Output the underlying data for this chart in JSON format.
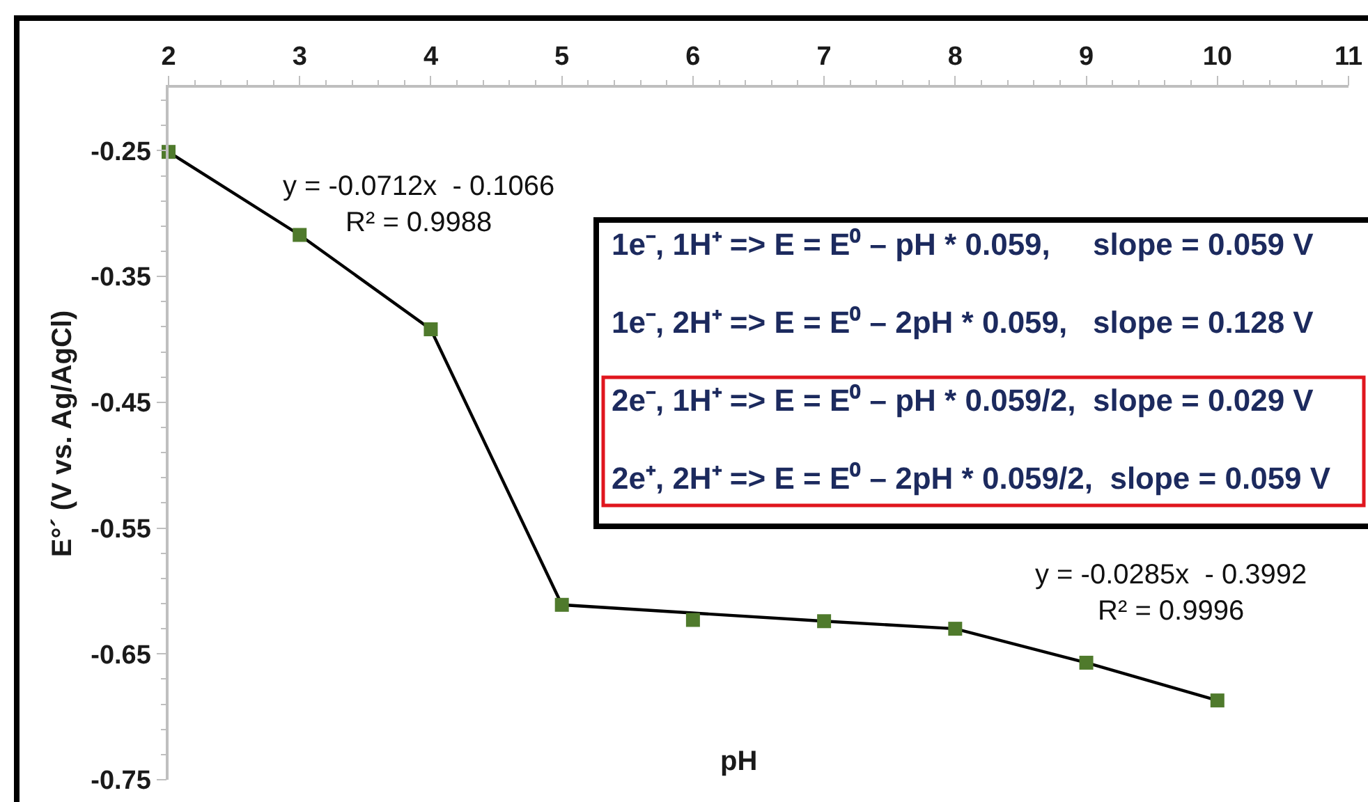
{
  "chart_data": {
    "type": "line",
    "xlabel": "pH",
    "ylabel": "E°´ (V vs. Ag/AgCl)",
    "series": [
      {
        "color": "#000000",
        "x": [
          2,
          3,
          4,
          5,
          7,
          8,
          9,
          10
        ],
        "values": [
          -0.251,
          -0.317,
          -0.392,
          -0.611,
          -0.624,
          -0.63,
          -0.657,
          -0.687
        ]
      },
      {
        "type": "scatter",
        "color": "#4f7a2c",
        "marker": "square",
        "x": [
          2,
          3,
          4,
          5,
          6,
          7,
          8,
          9,
          10
        ],
        "values": [
          -0.251,
          -0.317,
          -0.392,
          -0.611,
          -0.623,
          -0.624,
          -0.63,
          -0.657,
          -0.687
        ]
      }
    ],
    "xlim": [
      2,
      11
    ],
    "xticks": [
      2,
      {
        "value": 2.2,
        "label": null
      },
      {
        "value": 2.4,
        "label": null
      },
      {
        "value": 2.6,
        "label": null
      },
      {
        "value": 2.8,
        "label": null
      },
      3,
      {
        "value": 3.2,
        "label": null
      },
      {
        "value": 3.4,
        "label": null
      },
      {
        "value": 3.6,
        "label": null
      },
      {
        "value": 3.8,
        "label": null
      },
      4,
      {
        "value": 4.2,
        "label": null
      },
      {
        "value": 4.4,
        "label": null
      },
      {
        "value": 4.6,
        "label": null
      },
      {
        "value": 4.8,
        "label": null
      },
      5,
      {
        "value": 5.2,
        "label": null
      },
      {
        "value": 5.4,
        "label": null
      },
      {
        "value": 5.6,
        "label": null
      },
      {
        "value": 5.8,
        "label": null
      },
      6,
      {
        "value": 6.2,
        "label": null
      },
      {
        "value": 6.4,
        "label": null
      },
      {
        "value": 6.6,
        "label": null
      },
      {
        "value": 6.8,
        "label": null
      },
      7,
      {
        "value": 7.2,
        "label": null
      },
      {
        "value": 7.4,
        "label": null
      },
      {
        "value": 7.6,
        "label": null
      },
      {
        "value": 7.8,
        "label": null
      },
      8,
      {
        "value": 8.2,
        "label": null
      },
      {
        "value": 8.4,
        "label": null
      },
      {
        "value": 8.6,
        "label": null
      },
      {
        "value": 8.8,
        "label": null
      },
      9,
      {
        "value": 9.2,
        "label": null
      },
      {
        "value": 9.4,
        "label": null
      },
      {
        "value": 9.6,
        "label": null
      },
      {
        "value": 9.8,
        "label": null
      },
      10,
      {
        "value": 10.2,
        "label": null
      },
      {
        "value": 10.4,
        "label": null
      },
      {
        "value": 10.6,
        "label": null
      },
      {
        "value": 10.8,
        "label": null
      },
      11
    ],
    "ylim": [
      -0.75,
      -0.2
    ],
    "yticks": [
      {
        "value": -0.21,
        "label": null
      },
      {
        "value": -0.23,
        "label": null
      },
      -0.25,
      {
        "value": -0.27,
        "label": null
      },
      {
        "value": -0.29,
        "label": null
      },
      {
        "value": -0.31,
        "label": null
      },
      {
        "value": -0.33,
        "label": null
      },
      -0.35,
      {
        "value": -0.37,
        "label": null
      },
      {
        "value": -0.39,
        "label": null
      },
      {
        "value": -0.41,
        "label": null
      },
      {
        "value": -0.43,
        "label": null
      },
      -0.45,
      {
        "value": -0.47,
        "label": null
      },
      {
        "value": -0.49,
        "label": null
      },
      {
        "value": -0.51,
        "label": null
      },
      {
        "value": -0.53,
        "label": null
      },
      -0.55,
      {
        "value": -0.57,
        "label": null
      },
      {
        "value": -0.59,
        "label": null
      },
      {
        "value": -0.61,
        "label": null
      },
      {
        "value": -0.63,
        "label": null
      },
      -0.65,
      {
        "value": -0.67,
        "label": null
      },
      {
        "value": -0.69,
        "label": null
      },
      {
        "value": -0.71,
        "label": null
      },
      {
        "value": -0.73,
        "label": null
      },
      -0.75
    ],
    "annotations": [
      "y = -0.0712x  - 0.1066\nR² = 0.9988",
      "y = -0.0285x  - 0.3992\nR² = 0.9996",
      "1e⁻, 1H⁺ => E = E⁰ – pH * 0.059,     slope = 0.059 V",
      "1e⁻, 2H⁺ => E = E⁰ – 2pH * 0.059,   slope = 0.128 V",
      "2e⁻, 1H⁺ => E = E⁰ – pH * 0.059/2,  slope = 0.029 V",
      "2e⁺, 2H⁺ => E = E⁰ – 2pH * 0.059/2,  slope = 0.059 V"
    ]
  }
}
